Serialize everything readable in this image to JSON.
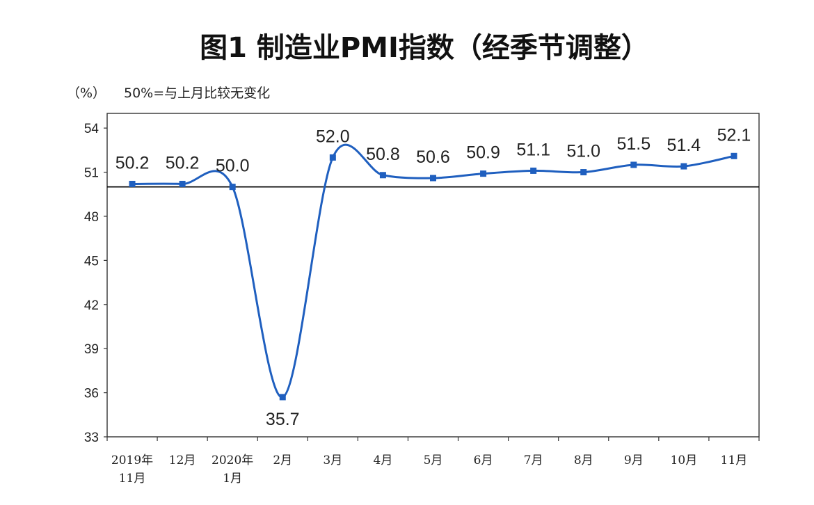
{
  "chart_data": {
    "type": "line",
    "title": "图1 制造业PMI指数（经季节调整）",
    "unit_label": "（%）",
    "reference_label": "50%=与上月比较无变化",
    "reference_value": 50,
    "ylim": [
      33,
      55
    ],
    "yticks": [
      33,
      36,
      39,
      42,
      45,
      48,
      51,
      54
    ],
    "grid": false,
    "categories": [
      [
        "2019年",
        "11月"
      ],
      [
        "12月"
      ],
      [
        "2020年",
        "1月"
      ],
      [
        "2月"
      ],
      [
        "3月"
      ],
      [
        "4月"
      ],
      [
        "5月"
      ],
      [
        "6月"
      ],
      [
        "7月"
      ],
      [
        "8月"
      ],
      [
        "9月"
      ],
      [
        "10月"
      ],
      [
        "11月"
      ]
    ],
    "values": [
      50.2,
      50.2,
      50.0,
      35.7,
      52.0,
      50.8,
      50.6,
      50.9,
      51.1,
      51.0,
      51.5,
      51.4,
      52.1
    ],
    "value_labels": [
      "50.2",
      "50.2",
      "50.0",
      "35.7",
      "52.0",
      "50.8",
      "50.6",
      "50.9",
      "51.1",
      "51.0",
      "51.5",
      "51.4",
      "52.1"
    ],
    "line_color": "#1f5fbf",
    "marker_color": "#1f5fbf",
    "reference_color": "#000000"
  }
}
